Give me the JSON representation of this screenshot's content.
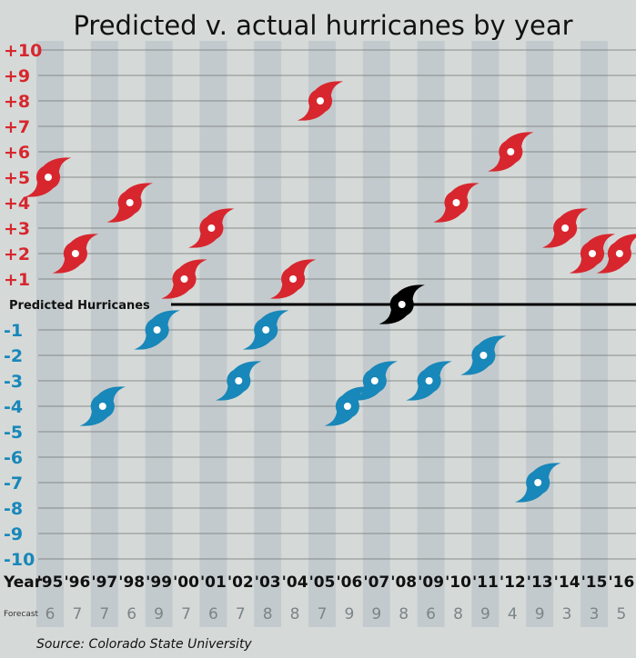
{
  "chart_data": {
    "type": "scatter",
    "title": "Predicted v. actual hurricanes by year",
    "xlabel": "Year",
    "forecast_label": "Forecast",
    "zero_label": "Predicted Hurricanes",
    "source": "Source: Colorado State University",
    "ylim": [
      -10,
      10
    ],
    "yticks": [
      "-10",
      "-9",
      "-8",
      "-7",
      "-6",
      "-5",
      "-4",
      "-3",
      "-2",
      "-1",
      "+1",
      "+2",
      "+3",
      "+4",
      "+5",
      "+6",
      "+7",
      "+8",
      "+9",
      "+10"
    ],
    "ytick_values": [
      -10,
      -9,
      -8,
      -7,
      -6,
      -5,
      -4,
      -3,
      -2,
      -1,
      1,
      2,
      3,
      4,
      5,
      6,
      7,
      8,
      9,
      10
    ],
    "categories": [
      "'95",
      "'96",
      "'97",
      "'98",
      "'99",
      "'00",
      "'01",
      "'02",
      "'03",
      "'04",
      "'05",
      "'06",
      "'07",
      "'08",
      "'09",
      "'10",
      "'11",
      "'12",
      "'13",
      "'14",
      "'15",
      "'16"
    ],
    "values": [
      5,
      2,
      -4,
      4,
      -1,
      1,
      3,
      -3,
      -1,
      1,
      8,
      -4,
      -3,
      0,
      -3,
      4,
      -2,
      6,
      -7,
      3,
      2,
      2
    ],
    "forecast": [
      "6",
      "7",
      "7",
      "6",
      "9",
      "7",
      "6",
      "7",
      "8",
      "8",
      "7",
      "9",
      "9",
      "8",
      "6",
      "8",
      "9",
      "4",
      "9",
      "3",
      "3",
      "5"
    ],
    "colors": {
      "above": "#d8262e",
      "below": "#1887b9",
      "exact": "#000000",
      "stripe": "#c3cacd",
      "background": "#d5dad8"
    },
    "marker_icon": "hurricane-icon",
    "grid": true
  }
}
